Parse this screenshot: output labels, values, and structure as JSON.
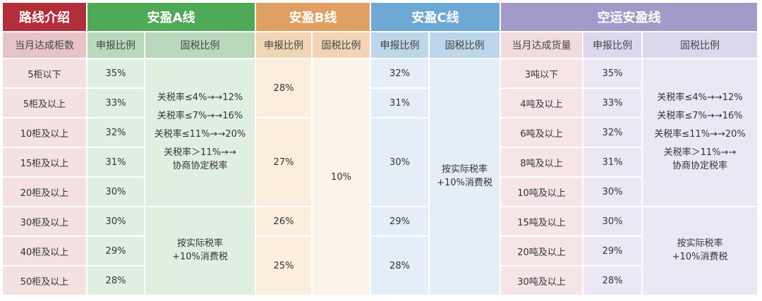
{
  "colors": {
    "route_header": "#b22e3b",
    "line_a": "#4faa58",
    "line_b": "#e0a063",
    "line_c": "#6ea9d5",
    "air": "#a39ac8"
  },
  "headers": {
    "route": "路线介绍",
    "line_a": "安盈A线",
    "line_b": "安盈B线",
    "line_c": "安盈C线",
    "air": "空运安盈线"
  },
  "subheaders": {
    "monthly_containers": "当月达成柜数",
    "a_declare": "申报比例",
    "a_tax": "固税比例",
    "b_declare": "申报比例",
    "b_tax": "固税比例",
    "c_declare": "申报比例",
    "c_tax": "固税比例",
    "air_volume": "当月达成货量",
    "air_declare": "申报比例",
    "air_tax": "固税比例"
  },
  "rows": [
    {
      "containers": "5柜以下",
      "a_declare": "35%",
      "c_declare": "32%",
      "air_volume": "3吨以下",
      "air_declare": "35%"
    },
    {
      "containers": "5柜及以上",
      "a_declare": "33%",
      "c_declare": "31%",
      "air_volume": "4吨及以上",
      "air_declare": "33%"
    },
    {
      "containers": "10柜及以上",
      "a_declare": "32%",
      "air_volume": "6吨及以上",
      "air_declare": "32%"
    },
    {
      "containers": "15柜及以上",
      "a_declare": "31%",
      "air_volume": "8吨及以上",
      "air_declare": "31%"
    },
    {
      "containers": "20柜及以上",
      "a_declare": "30%",
      "air_volume": "10吨及以上",
      "air_declare": "30%"
    },
    {
      "containers": "30柜及以上",
      "a_declare": "30%",
      "air_volume": "15吨及以上",
      "air_declare": "30%"
    },
    {
      "containers": "40柜及以上",
      "a_declare": "29%",
      "air_volume": "20吨及以上",
      "air_declare": "29%"
    },
    {
      "containers": "50柜及以上",
      "a_declare": "28%",
      "air_volume": "30吨及以上",
      "air_declare": "28%"
    }
  ],
  "merged": {
    "b_declare": [
      "28%",
      "27%",
      "26%",
      "25%"
    ],
    "b_tax": "10%",
    "c_declare_mid": "30%",
    "c_declare_29": "29%",
    "c_declare_28": "28%",
    "c_tax": [
      "按实际税率",
      "+10%消费税"
    ],
    "tax_tiers": [
      "关税率≤4%→→12%",
      "关税率≤7%→→16%",
      "关税率≤11%→→20%",
      "关税率＞11%→→",
      "协商协定税率"
    ],
    "actual_tax": [
      "按实际税率",
      "+10%消费税"
    ]
  }
}
